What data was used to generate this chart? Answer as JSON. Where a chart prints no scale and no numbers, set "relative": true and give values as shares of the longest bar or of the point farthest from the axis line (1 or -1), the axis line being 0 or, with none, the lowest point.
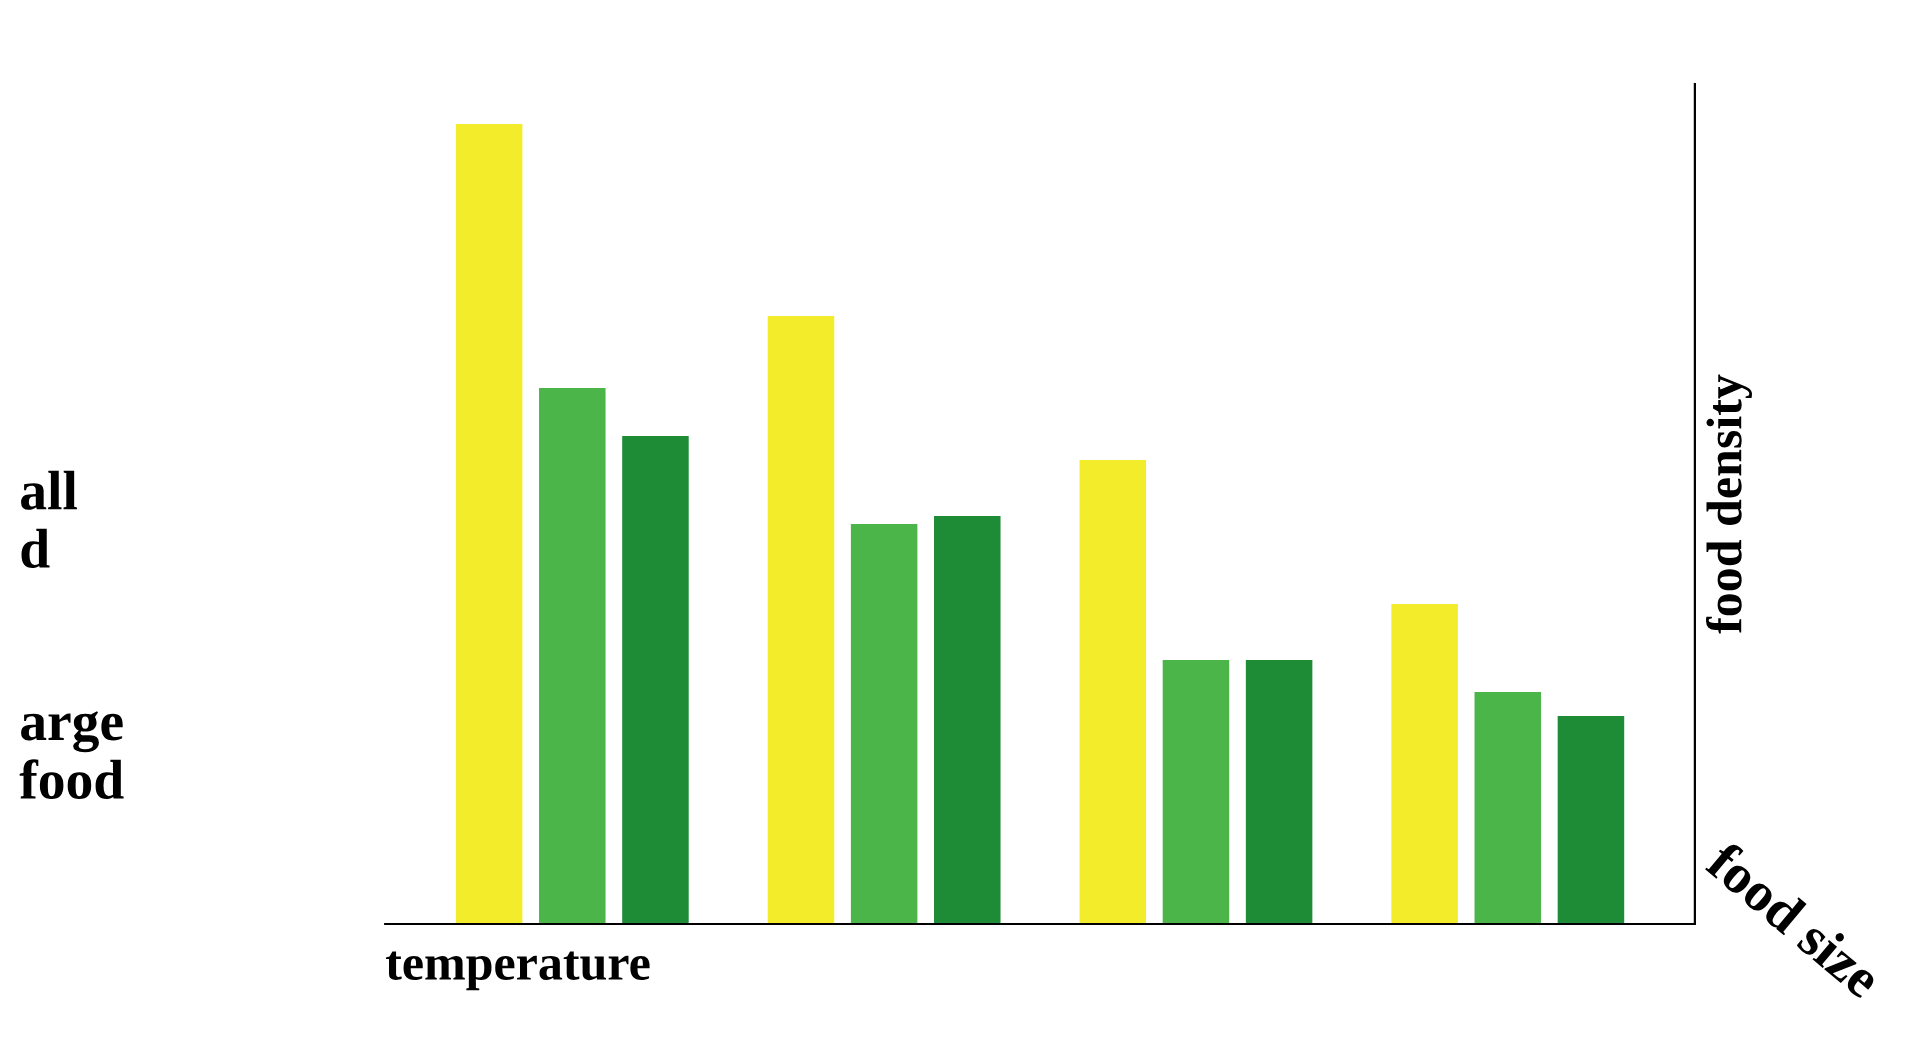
{
  "chart_data": {
    "type": "bar",
    "relative": true,
    "xlabel": "temperature",
    "ylabel": "food density",
    "categories": [
      null,
      null,
      null,
      null
    ],
    "series": [
      {
        "color": "#f2ec2a",
        "values": [
          1,
          0.76,
          0.58,
          0.4
        ]
      },
      {
        "color": "#4cb54a",
        "values": [
          0.67,
          0.5,
          0.33,
          0.29
        ]
      },
      {
        "color": "#1e8c36",
        "values": [
          0.61,
          0.51,
          0.33,
          0.26
        ]
      }
    ],
    "annotations": [
      "food size",
      "all\nd",
      "arge\nfood"
    ],
    "grid": false,
    "legend": false
  }
}
